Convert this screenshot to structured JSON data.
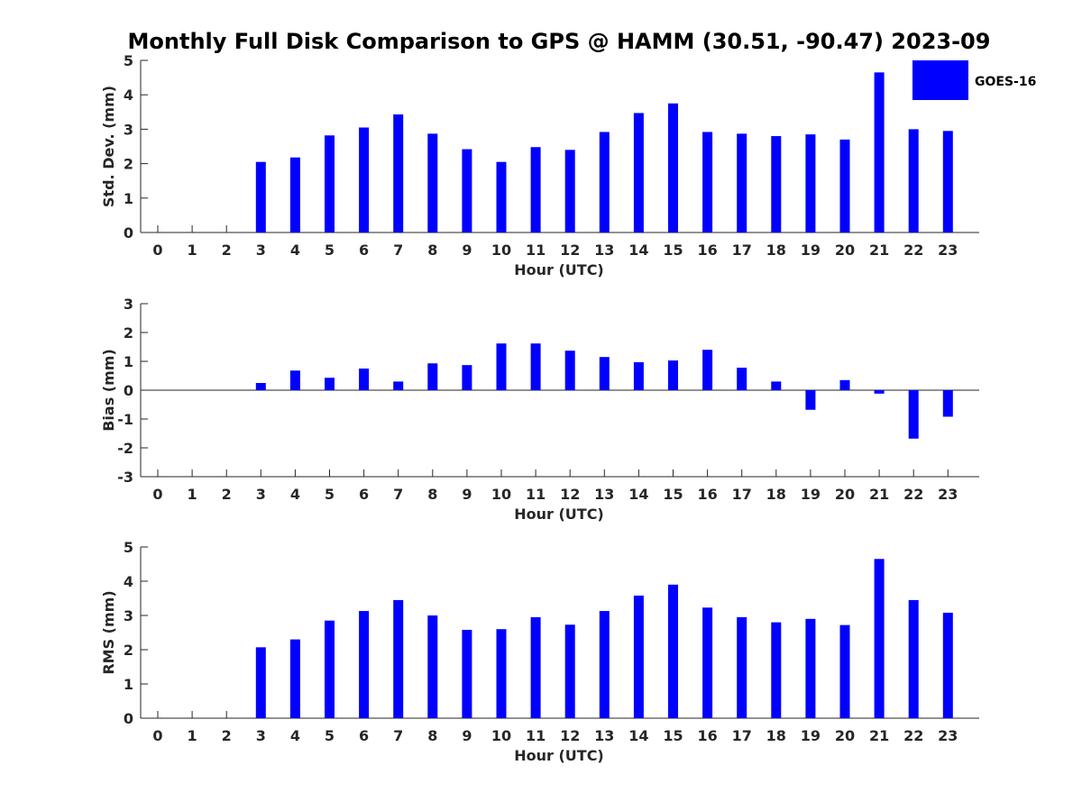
{
  "title": "Monthly Full Disk Comparison to GPS @ HAMM (30.51, -90.47) 2023-09",
  "legend": {
    "label": "GOES-16",
    "position": "top-right"
  },
  "colors": {
    "bar": "#0000ff",
    "axis": "#262626",
    "text": "#262626"
  },
  "chart_data": [
    {
      "type": "bar",
      "xlabel": "Hour (UTC)",
      "ylabel": "Std. Dev. (mm)",
      "ylim": [
        0,
        5
      ],
      "yticks": [
        0,
        1,
        2,
        3,
        4,
        5
      ],
      "categories": [
        "0",
        "1",
        "2",
        "3",
        "4",
        "5",
        "6",
        "7",
        "8",
        "9",
        "10",
        "11",
        "12",
        "13",
        "14",
        "15",
        "16",
        "17",
        "18",
        "19",
        "20",
        "21",
        "22",
        "23"
      ],
      "series": [
        {
          "name": "GOES-16",
          "values": [
            null,
            null,
            null,
            2.05,
            2.18,
            2.82,
            3.05,
            3.43,
            2.87,
            2.42,
            2.05,
            2.48,
            2.4,
            2.92,
            3.47,
            3.75,
            2.92,
            2.87,
            2.8,
            2.85,
            2.7,
            4.65,
            3.0,
            2.95
          ]
        }
      ],
      "grid": false
    },
    {
      "type": "bar",
      "xlabel": "Hour (UTC)",
      "ylabel": "Bias (mm)",
      "ylim": [
        -3,
        3
      ],
      "yticks": [
        -3,
        -2,
        -1,
        0,
        1,
        2,
        3
      ],
      "categories": [
        "0",
        "1",
        "2",
        "3",
        "4",
        "5",
        "6",
        "7",
        "8",
        "9",
        "10",
        "11",
        "12",
        "13",
        "14",
        "15",
        "16",
        "17",
        "18",
        "19",
        "20",
        "21",
        "22",
        "23"
      ],
      "series": [
        {
          "name": "GOES-16",
          "values": [
            null,
            null,
            null,
            0.25,
            0.68,
            0.43,
            0.75,
            0.3,
            0.93,
            0.87,
            1.62,
            1.62,
            1.37,
            1.15,
            0.97,
            1.03,
            1.4,
            0.78,
            0.3,
            -0.68,
            0.35,
            -0.12,
            -1.68,
            -0.92
          ]
        }
      ],
      "grid": false
    },
    {
      "type": "bar",
      "xlabel": "Hour (UTC)",
      "ylabel": "RMS (mm)",
      "ylim": [
        0,
        5
      ],
      "yticks": [
        0,
        1,
        2,
        3,
        4,
        5
      ],
      "categories": [
        "0",
        "1",
        "2",
        "3",
        "4",
        "5",
        "6",
        "7",
        "8",
        "9",
        "10",
        "11",
        "12",
        "13",
        "14",
        "15",
        "16",
        "17",
        "18",
        "19",
        "20",
        "21",
        "22",
        "23"
      ],
      "series": [
        {
          "name": "GOES-16",
          "values": [
            null,
            null,
            null,
            2.07,
            2.3,
            2.85,
            3.13,
            3.45,
            3.0,
            2.58,
            2.6,
            2.95,
            2.73,
            3.13,
            3.58,
            3.9,
            3.23,
            2.95,
            2.8,
            2.9,
            2.72,
            4.65,
            3.45,
            3.08
          ]
        }
      ],
      "grid": false
    }
  ]
}
